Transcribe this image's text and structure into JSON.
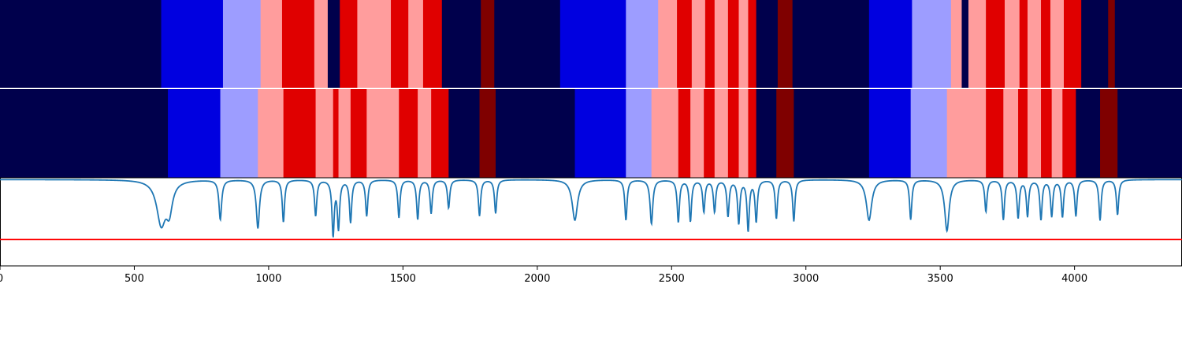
{
  "chart_data": [
    {
      "type": "heatmap",
      "track": "top",
      "xlim": [
        0,
        4400
      ],
      "palette": {
        "0": "#00004c",
        "1": "#0000e0",
        "2": "#9d9dff",
        "3": "#ff9d9d",
        "4": "#e00000",
        "5": "#7f0000"
      },
      "segments": [
        [
          0,
          600,
          0
        ],
        [
          600,
          830,
          1
        ],
        [
          830,
          970,
          2
        ],
        [
          970,
          1050,
          3
        ],
        [
          1050,
          1170,
          4
        ],
        [
          1170,
          1220,
          3
        ],
        [
          1220,
          1265,
          0
        ],
        [
          1265,
          1330,
          4
        ],
        [
          1330,
          1455,
          3
        ],
        [
          1455,
          1520,
          4
        ],
        [
          1520,
          1575,
          3
        ],
        [
          1575,
          1645,
          4
        ],
        [
          1645,
          1790,
          0
        ],
        [
          1790,
          1840,
          5
        ],
        [
          1840,
          2085,
          0
        ],
        [
          2085,
          2330,
          1
        ],
        [
          2330,
          2450,
          2
        ],
        [
          2450,
          2520,
          3
        ],
        [
          2520,
          2575,
          4
        ],
        [
          2575,
          2625,
          3
        ],
        [
          2625,
          2660,
          4
        ],
        [
          2660,
          2710,
          3
        ],
        [
          2710,
          2750,
          4
        ],
        [
          2750,
          2785,
          3
        ],
        [
          2785,
          2815,
          4
        ],
        [
          2815,
          2895,
          0
        ],
        [
          2895,
          2950,
          5
        ],
        [
          2950,
          3235,
          0
        ],
        [
          3235,
          3395,
          1
        ],
        [
          3395,
          3540,
          2
        ],
        [
          3540,
          3580,
          3
        ],
        [
          3580,
          3605,
          0
        ],
        [
          3605,
          3670,
          3
        ],
        [
          3670,
          3740,
          4
        ],
        [
          3740,
          3795,
          3
        ],
        [
          3795,
          3825,
          4
        ],
        [
          3825,
          3875,
          3
        ],
        [
          3875,
          3910,
          4
        ],
        [
          3910,
          3960,
          3
        ],
        [
          3960,
          4025,
          4
        ],
        [
          4025,
          4125,
          0
        ],
        [
          4125,
          4150,
          5
        ],
        [
          4150,
          4400,
          0
        ]
      ]
    },
    {
      "type": "heatmap",
      "track": "middle",
      "xlim": [
        0,
        4400
      ],
      "palette": {
        "0": "#00004c",
        "1": "#0000e0",
        "2": "#9d9dff",
        "3": "#ff9d9d",
        "4": "#e00000",
        "5": "#7f0000"
      },
      "segments": [
        [
          0,
          625,
          0
        ],
        [
          625,
          820,
          1
        ],
        [
          820,
          960,
          2
        ],
        [
          960,
          1055,
          3
        ],
        [
          1055,
          1175,
          4
        ],
        [
          1175,
          1240,
          3
        ],
        [
          1240,
          1260,
          4
        ],
        [
          1260,
          1305,
          3
        ],
        [
          1305,
          1365,
          4
        ],
        [
          1365,
          1485,
          3
        ],
        [
          1485,
          1555,
          4
        ],
        [
          1555,
          1605,
          3
        ],
        [
          1605,
          1670,
          4
        ],
        [
          1670,
          1785,
          0
        ],
        [
          1785,
          1845,
          5
        ],
        [
          1845,
          2140,
          0
        ],
        [
          2140,
          2330,
          1
        ],
        [
          2330,
          2425,
          2
        ],
        [
          2425,
          2525,
          3
        ],
        [
          2525,
          2570,
          4
        ],
        [
          2570,
          2620,
          3
        ],
        [
          2620,
          2660,
          4
        ],
        [
          2660,
          2710,
          3
        ],
        [
          2710,
          2750,
          4
        ],
        [
          2750,
          2785,
          3
        ],
        [
          2785,
          2815,
          4
        ],
        [
          2815,
          2890,
          0
        ],
        [
          2890,
          2955,
          5
        ],
        [
          2955,
          3235,
          0
        ],
        [
          3235,
          3390,
          1
        ],
        [
          3390,
          3525,
          2
        ],
        [
          3525,
          3670,
          3
        ],
        [
          3670,
          3735,
          4
        ],
        [
          3735,
          3790,
          3
        ],
        [
          3790,
          3825,
          4
        ],
        [
          3825,
          3875,
          3
        ],
        [
          3875,
          3915,
          4
        ],
        [
          3915,
          3955,
          3
        ],
        [
          3955,
          4005,
          4
        ],
        [
          4005,
          4095,
          0
        ],
        [
          4095,
          4160,
          5
        ],
        [
          4160,
          4400,
          0
        ]
      ]
    },
    {
      "type": "line",
      "track": "bottom",
      "xlim": [
        0,
        4400
      ],
      "ylim": [
        -1.0,
        0.0
      ],
      "line_color": "#1f77b4",
      "threshold": -0.7,
      "threshold_color": "#ff0000",
      "baseline": -0.02,
      "dips": [
        [
          600,
          -0.51,
          20
        ],
        [
          630,
          -0.33,
          14
        ],
        [
          820,
          -0.47,
          6
        ],
        [
          960,
          -0.57,
          7
        ],
        [
          1055,
          -0.5,
          5
        ],
        [
          1175,
          -0.43,
          5
        ],
        [
          1240,
          -0.64,
          5
        ],
        [
          1260,
          -0.56,
          5
        ],
        [
          1305,
          -0.5,
          5
        ],
        [
          1365,
          -0.43,
          5
        ],
        [
          1485,
          -0.45,
          5
        ],
        [
          1555,
          -0.47,
          5
        ],
        [
          1605,
          -0.4,
          5
        ],
        [
          1670,
          -0.34,
          5
        ],
        [
          1785,
          -0.43,
          5
        ],
        [
          1845,
          -0.4,
          5
        ],
        [
          2140,
          -0.48,
          12
        ],
        [
          2330,
          -0.48,
          5
        ],
        [
          2425,
          -0.52,
          6
        ],
        [
          2525,
          -0.5,
          5
        ],
        [
          2570,
          -0.49,
          5
        ],
        [
          2620,
          -0.38,
          5
        ],
        [
          2660,
          -0.38,
          5
        ],
        [
          2710,
          -0.43,
          5
        ],
        [
          2750,
          -0.51,
          5
        ],
        [
          2785,
          -0.59,
          5
        ],
        [
          2815,
          -0.49,
          5
        ],
        [
          2890,
          -0.46,
          5
        ],
        [
          2955,
          -0.49,
          5
        ],
        [
          3235,
          -0.48,
          12
        ],
        [
          3390,
          -0.47,
          5
        ],
        [
          3525,
          -0.6,
          10
        ],
        [
          3670,
          -0.38,
          5
        ],
        [
          3735,
          -0.47,
          5
        ],
        [
          3790,
          -0.45,
          5
        ],
        [
          3825,
          -0.43,
          5
        ],
        [
          3875,
          -0.47,
          5
        ],
        [
          3915,
          -0.43,
          5
        ],
        [
          3955,
          -0.44,
          5
        ],
        [
          4005,
          -0.43,
          5
        ],
        [
          4095,
          -0.48,
          5
        ],
        [
          4160,
          -0.42,
          5
        ]
      ],
      "ticks": [
        0,
        500,
        1000,
        1500,
        2000,
        2500,
        3000,
        3500,
        4000
      ],
      "tick_labels": [
        "0",
        "500",
        "1000",
        "1500",
        "2000",
        "2500",
        "3000",
        "3500",
        "4000"
      ]
    }
  ]
}
